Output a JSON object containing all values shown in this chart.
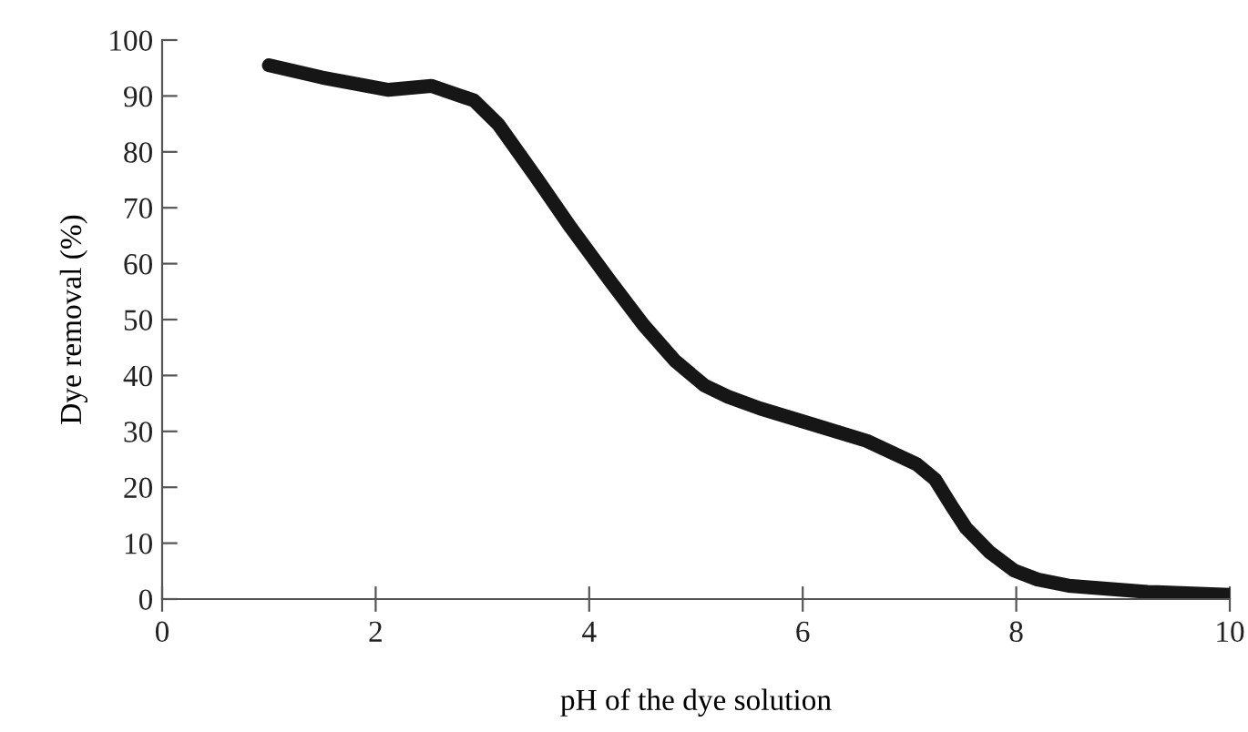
{
  "chart_data": {
    "type": "line",
    "xlabel": "pH of the dye solution",
    "ylabel": "Dye removal (%)",
    "series": [
      {
        "color": "#161616",
        "x": [
          1,
          1.5,
          2.12,
          2.52,
          2.92,
          3.15,
          3.5,
          3.83,
          4.2,
          4.51,
          4.8,
          5.08,
          5.3,
          5.6,
          6.1,
          6.6,
          7.07,
          7.24,
          7.4,
          7.53,
          7.75,
          7.98,
          8.2,
          8.49,
          9.23,
          10
        ],
        "values": [
          95.5,
          93.3,
          91.1,
          91.8,
          89.2,
          84.9,
          75.5,
          66.4,
          56.8,
          49,
          42.7,
          38.2,
          36.2,
          34.1,
          31.2,
          28.3,
          24.1,
          21.4,
          16.5,
          12.7,
          8.4,
          5.1,
          3.5,
          2.4,
          1.3,
          0.75
        ]
      }
    ],
    "xlim": [
      0,
      10
    ],
    "xticks": [
      0,
      2,
      4,
      6,
      8,
      10
    ],
    "ylim": [
      0,
      100
    ],
    "yticks": [
      0,
      10,
      20,
      30,
      40,
      50,
      60,
      70,
      80,
      90,
      100
    ],
    "grid": false,
    "legend": false,
    "marker": "none",
    "line_style": "solid"
  }
}
